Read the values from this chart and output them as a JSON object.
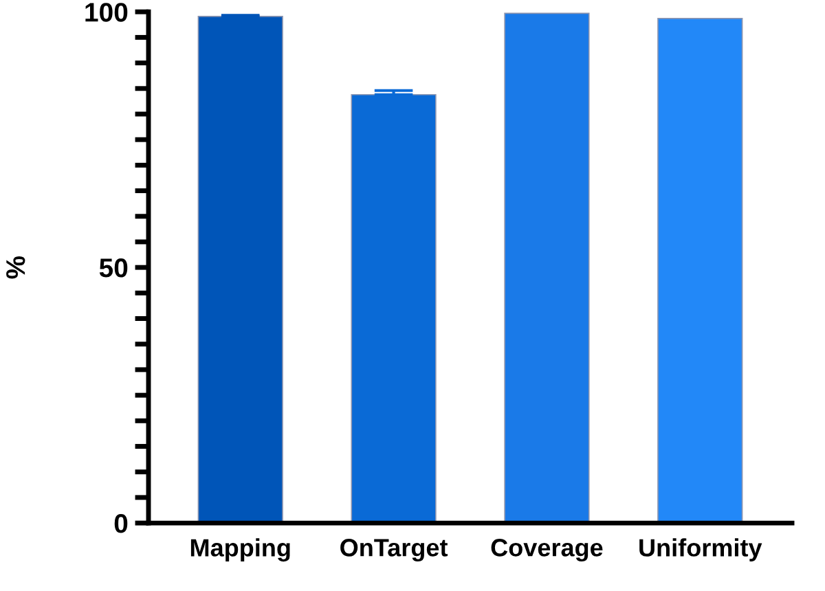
{
  "chart_data": {
    "type": "bar",
    "ylabel": "%",
    "categories": [
      "Mapping",
      "OnTarget",
      "Coverage",
      "Uniformity"
    ],
    "values": [
      99.1,
      83.8,
      99.7,
      98.7
    ],
    "errors": [
      0.2,
      0.8,
      null,
      null
    ],
    "colors": [
      "#0055b8",
      "#0a6ad6",
      "#1a7ae8",
      "#2288f8"
    ],
    "ylim": [
      0,
      100
    ],
    "yticks": [
      0,
      {
        "value": 5,
        "label": null
      },
      {
        "value": 10,
        "label": null
      },
      {
        "value": 15,
        "label": null
      },
      {
        "value": 20,
        "label": null
      },
      {
        "value": 25,
        "label": null
      },
      {
        "value": 30,
        "label": null
      },
      {
        "value": 35,
        "label": null
      },
      {
        "value": 40,
        "label": null
      },
      {
        "value": 45,
        "label": null
      },
      50,
      {
        "value": 55,
        "label": null
      },
      {
        "value": 60,
        "label": null
      },
      {
        "value": 65,
        "label": null
      },
      {
        "value": 70,
        "label": null
      },
      {
        "value": 75,
        "label": null
      },
      {
        "value": 80,
        "label": null
      },
      {
        "value": 85,
        "label": null
      },
      {
        "value": 90,
        "label": null
      },
      {
        "value": 95,
        "label": null
      },
      100
    ],
    "grid": false
  }
}
